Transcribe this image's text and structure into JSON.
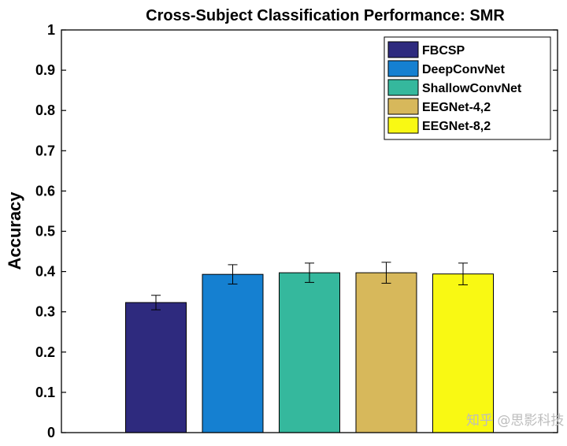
{
  "chart_data": {
    "type": "bar",
    "title": "Cross-Subject Classification Performance: SMR",
    "xlabel": "",
    "ylabel": "Accuracy",
    "ylim": [
      0,
      1
    ],
    "yticks": [
      "0",
      "0.1",
      "0.2",
      "0.3",
      "0.4",
      "0.5",
      "0.6",
      "0.7",
      "0.8",
      "0.9",
      "1"
    ],
    "grid": false,
    "legend_position": "top-right",
    "series": [
      {
        "name": "FBCSP",
        "value": 0.323,
        "error": 0.018,
        "color": "#2e2a7e"
      },
      {
        "name": "DeepConvNet",
        "value": 0.393,
        "error": 0.024,
        "color": "#1580d1"
      },
      {
        "name": "ShallowConvNet",
        "value": 0.397,
        "error": 0.024,
        "color": "#35b89d"
      },
      {
        "name": "EEGNet-4,2",
        "value": 0.397,
        "error": 0.026,
        "color": "#d7b85b"
      },
      {
        "name": "EEGNet-8,2",
        "value": 0.394,
        "error": 0.027,
        "color": "#f9f913"
      }
    ]
  },
  "watermark": "知乎 @思影科技"
}
